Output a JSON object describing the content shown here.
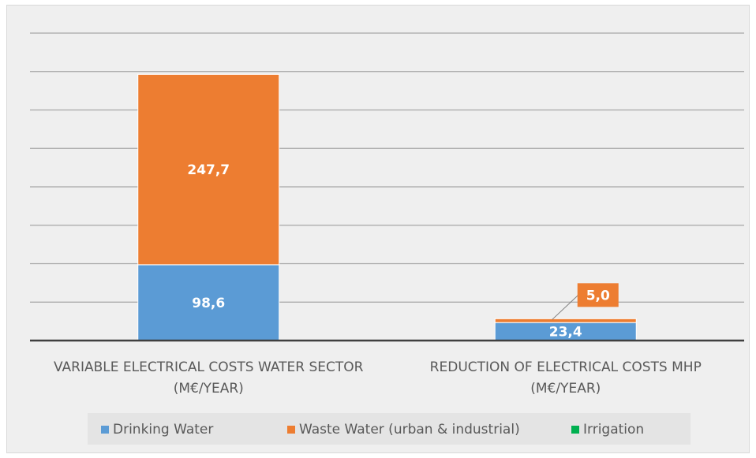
{
  "chart_data": {
    "type": "bar",
    "stacked": true,
    "categories": [
      [
        "VARIABLE ELECTRICAL COSTS WATER SECTOR",
        "(M€/YEAR)"
      ],
      [
        "REDUCTION OF ELECTRICAL COSTS MHP",
        "(M€/YEAR)"
      ]
    ],
    "series": [
      {
        "name": "Drinking Water",
        "values": [
          98.6,
          23.4
        ],
        "labels": [
          "98,6",
          "23,4"
        ],
        "color": "#5b9bd5"
      },
      {
        "name": "Waste Water (urban & industrial)",
        "values": [
          247.7,
          5.0
        ],
        "labels": [
          "247,7",
          "5,0"
        ],
        "color": "#ed7d31"
      },
      {
        "name": "Irrigation",
        "values": [
          0,
          0
        ],
        "labels": [
          "",
          ""
        ],
        "color": "#00b050"
      }
    ],
    "ylim": [
      0,
      400
    ],
    "ytick_step": 50,
    "ytick_labels_shown": false,
    "grid": true,
    "legend": "bottom",
    "background_color": "#efefef",
    "grid_color": "#a6a6a6"
  }
}
